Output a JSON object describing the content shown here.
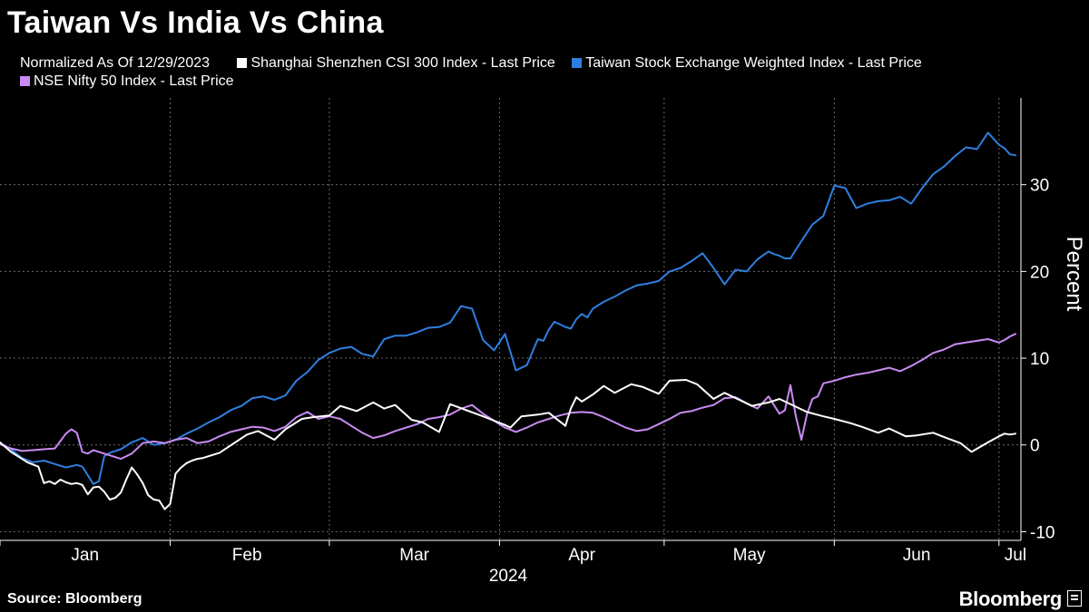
{
  "title": "Taiwan Vs India Vs China",
  "legend": {
    "note": "Normalized As Of 12/29/2023"
  },
  "source": "Source: Bloomberg",
  "brand": "Bloomberg",
  "chart_data": {
    "type": "line",
    "title": "Taiwan Vs India Vs China",
    "subtitle": "Normalized As Of 12/29/2023",
    "xlabel": "2024",
    "ylabel": "Percent",
    "ylim": [
      -11,
      40
    ],
    "yticks": [
      -10,
      0,
      10,
      20,
      30
    ],
    "ytick_labels": [
      "-10",
      "0",
      "10",
      "20",
      "30"
    ],
    "xlim": [
      0,
      186
    ],
    "month_boundaries": [
      0,
      31,
      60,
      91,
      121,
      152,
      182
    ],
    "month_labels": [
      {
        "label": "Jan",
        "t": 15.5
      },
      {
        "label": "Feb",
        "t": 45
      },
      {
        "label": "Mar",
        "t": 75.5
      },
      {
        "label": "Apr",
        "t": 106
      },
      {
        "label": "May",
        "t": 136.5
      },
      {
        "label": "Jun",
        "t": 167
      },
      {
        "label": "Jul",
        "t": 185
      }
    ],
    "year_label": "2024",
    "grid": true,
    "legend_position": "top",
    "series": [
      {
        "name": "Shanghai Shenzhen CSI 300 Index - Last Price",
        "color": "#ffffff",
        "x": [
          0,
          2,
          5,
          7,
          8,
          9,
          10,
          11,
          12,
          13,
          14,
          15,
          16,
          17,
          18,
          19,
          20,
          21,
          22,
          23,
          24,
          25,
          26,
          27,
          28,
          29,
          30,
          31,
          32,
          33,
          34,
          35,
          36,
          37,
          38,
          39,
          40,
          45,
          47,
          50,
          52,
          55,
          57,
          60,
          62,
          65,
          68,
          70,
          72,
          75,
          77,
          80,
          82,
          85,
          88,
          90,
          92,
          93,
          95,
          98,
          100,
          103,
          104,
          105,
          106,
          108,
          110,
          112,
          115,
          117,
          120,
          122,
          125,
          127,
          130,
          132,
          135,
          137,
          140,
          142,
          145,
          147,
          150,
          152,
          155,
          157,
          160,
          162,
          165,
          167,
          170,
          172,
          175,
          177,
          180,
          182,
          183,
          184,
          185
        ],
        "y": [
          0.3,
          -0.8,
          -2.0,
          -2.5,
          -4.4,
          -4.2,
          -4.5,
          -4.0,
          -4.3,
          -4.5,
          -4.4,
          -4.6,
          -5.7,
          -4.9,
          -4.8,
          -5.4,
          -6.3,
          -6.1,
          -5.5,
          -4.0,
          -2.6,
          -3.4,
          -4.4,
          -5.8,
          -6.3,
          -6.4,
          -7.4,
          -6.8,
          -3.3,
          -2.6,
          -2.1,
          -1.8,
          -1.6,
          -1.5,
          -1.3,
          -1.1,
          -0.9,
          1.2,
          1.6,
          0.6,
          1.8,
          3.0,
          3.2,
          3.4,
          4.5,
          3.9,
          4.9,
          4.2,
          4.6,
          2.9,
          2.6,
          1.5,
          4.7,
          4.0,
          3.3,
          2.8,
          2.3,
          2.0,
          3.3,
          3.5,
          3.7,
          2.2,
          4.2,
          5.5,
          5.0,
          5.8,
          6.8,
          6.0,
          7.0,
          6.7,
          5.9,
          7.4,
          7.5,
          7.0,
          5.3,
          6.0,
          5.1,
          4.5,
          4.9,
          5.3,
          4.4,
          3.8,
          3.3,
          3.0,
          2.5,
          2.1,
          1.4,
          1.9,
          1.0,
          1.1,
          1.4,
          0.9,
          0.2,
          -0.8,
          0.3,
          1.0,
          1.3,
          1.2,
          1.3
        ]
      },
      {
        "name": "Taiwan Stock Exchange Weighted Index - Last Price",
        "color": "#2f7fe0",
        "x": [
          0,
          2,
          4,
          6,
          8,
          10,
          12,
          14,
          15,
          16,
          17,
          18,
          19,
          20,
          22,
          24,
          26,
          28,
          30,
          32,
          34,
          36,
          38,
          40,
          42,
          44,
          46,
          48,
          50,
          52,
          54,
          56,
          58,
          60,
          62,
          64,
          66,
          68,
          70,
          72,
          74,
          76,
          78,
          80,
          82,
          84,
          86,
          88,
          90,
          92,
          94,
          96,
          98,
          99,
          100,
          101,
          103,
          104,
          105,
          106,
          107,
          108,
          110,
          112,
          114,
          116,
          118,
          120,
          122,
          124,
          126,
          128,
          130,
          132,
          134,
          136,
          138,
          140,
          141,
          142,
          143,
          144,
          146,
          148,
          150,
          152,
          154,
          156,
          158,
          160,
          162,
          164,
          166,
          168,
          170,
          172,
          174,
          176,
          178,
          180,
          182,
          183,
          184,
          185
        ],
        "y": [
          0.2,
          -0.5,
          -1.5,
          -2.0,
          -1.8,
          -2.2,
          -2.6,
          -2.3,
          -2.5,
          -3.5,
          -4.5,
          -4.2,
          -1.3,
          -0.9,
          -0.5,
          0.3,
          0.8,
          0.0,
          0.2,
          0.6,
          1.3,
          1.9,
          2.6,
          3.2,
          4.0,
          4.5,
          5.4,
          5.6,
          5.2,
          5.7,
          7.4,
          8.4,
          9.8,
          10.6,
          11.1,
          11.3,
          10.5,
          10.2,
          12.2,
          12.6,
          12.6,
          13.0,
          13.5,
          13.6,
          14.1,
          16.0,
          15.7,
          12.1,
          10.9,
          12.8,
          8.6,
          9.2,
          12.2,
          12.0,
          13.3,
          14.2,
          13.6,
          13.4,
          14.5,
          15.1,
          14.7,
          15.7,
          16.5,
          17.1,
          17.8,
          18.4,
          18.6,
          18.9,
          20.0,
          20.4,
          21.2,
          22.1,
          20.4,
          18.5,
          20.2,
          20.0,
          21.4,
          22.3,
          22.0,
          21.8,
          21.5,
          21.5,
          23.5,
          25.4,
          26.4,
          29.9,
          29.6,
          27.3,
          27.8,
          28.1,
          28.2,
          28.6,
          27.8,
          29.6,
          31.2,
          32.1,
          33.3,
          34.3,
          34.1,
          36.0,
          34.6,
          34.2,
          33.5,
          33.4
        ]
      },
      {
        "name": "NSE Nifty 50 Index - Last Price",
        "color": "#c98bf3",
        "x": [
          0,
          2,
          4,
          6,
          8,
          10,
          12,
          13,
          14,
          15,
          16,
          17,
          18,
          20,
          22,
          24,
          26,
          28,
          30,
          32,
          34,
          36,
          38,
          40,
          42,
          44,
          46,
          48,
          50,
          52,
          54,
          56,
          58,
          60,
          62,
          64,
          66,
          68,
          70,
          72,
          74,
          76,
          78,
          80,
          82,
          84,
          86,
          88,
          90,
          92,
          94,
          96,
          98,
          100,
          102,
          104,
          106,
          108,
          110,
          112,
          114,
          116,
          118,
          120,
          122,
          124,
          126,
          128,
          130,
          132,
          134,
          136,
          138,
          140,
          142,
          143,
          144,
          145,
          146,
          147,
          148,
          149,
          150,
          152,
          154,
          156,
          158,
          160,
          162,
          164,
          166,
          168,
          170,
          172,
          174,
          176,
          178,
          180,
          182,
          183,
          184,
          185
        ],
        "y": [
          0.1,
          -0.4,
          -0.7,
          -0.6,
          -0.5,
          -0.4,
          1.3,
          1.8,
          1.4,
          -0.8,
          -1.0,
          -0.6,
          -0.8,
          -1.2,
          -1.6,
          -1.0,
          0.2,
          0.4,
          0.2,
          0.6,
          0.8,
          0.2,
          0.4,
          1.0,
          1.5,
          1.8,
          2.1,
          2.0,
          1.6,
          2.1,
          3.2,
          3.8,
          3.0,
          3.3,
          3.0,
          2.2,
          1.4,
          0.8,
          1.1,
          1.6,
          2.0,
          2.4,
          3.0,
          3.2,
          3.5,
          4.2,
          4.6,
          3.6,
          2.8,
          2.0,
          1.5,
          2.0,
          2.6,
          3.0,
          3.4,
          3.7,
          3.8,
          3.7,
          3.2,
          2.6,
          2.0,
          1.6,
          1.8,
          2.4,
          3.0,
          3.7,
          3.9,
          4.3,
          4.6,
          5.4,
          5.5,
          4.8,
          4.2,
          5.6,
          3.6,
          4.0,
          6.9,
          3.3,
          0.6,
          3.5,
          5.3,
          5.6,
          7.1,
          7.4,
          7.8,
          8.1,
          8.3,
          8.6,
          8.9,
          8.5,
          9.1,
          9.8,
          10.6,
          11.0,
          11.6,
          11.8,
          12.0,
          12.2,
          11.8,
          12.1,
          12.5,
          12.8
        ]
      }
    ]
  }
}
